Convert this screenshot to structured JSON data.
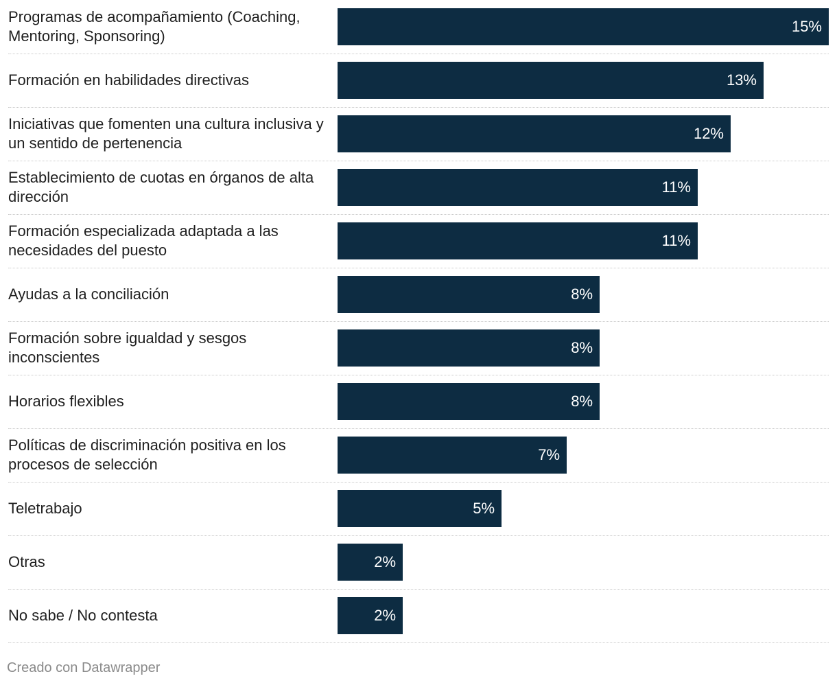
{
  "chart_data": {
    "type": "bar",
    "orientation": "horizontal",
    "categories": [
      "Programas de acompañamiento (Coaching, Mentoring, Sponsoring)",
      "Formación en habilidades directivas",
      "Iniciativas que fomenten una cultura inclusiva y un sentido de pertenencia",
      "Establecimiento de cuotas en órganos de alta dirección",
      "Formación especializada adaptada a las necesidades del puesto",
      "Ayudas a la conciliación",
      "Formación sobre igualdad y sesgos inconscientes",
      "Horarios flexibles",
      "Políticas de discriminación positiva en los procesos de selección",
      "Teletrabajo",
      "Otras",
      "No sabe / No contesta"
    ],
    "values": [
      15,
      13,
      12,
      11,
      11,
      8,
      8,
      8,
      7,
      5,
      2,
      2
    ],
    "labels": [
      "15%",
      "13%",
      "12%",
      "11%",
      "11%",
      "8%",
      "8%",
      "8%",
      "7%",
      "5%",
      "2%",
      "2%"
    ],
    "unit": "%",
    "xlim": [
      0,
      15
    ],
    "bar_color": "#0d2c42",
    "label_color": "#ffffff",
    "title": "",
    "xlabel": "",
    "ylabel": ""
  },
  "footer": {
    "text": "Creado con Datawrapper"
  }
}
